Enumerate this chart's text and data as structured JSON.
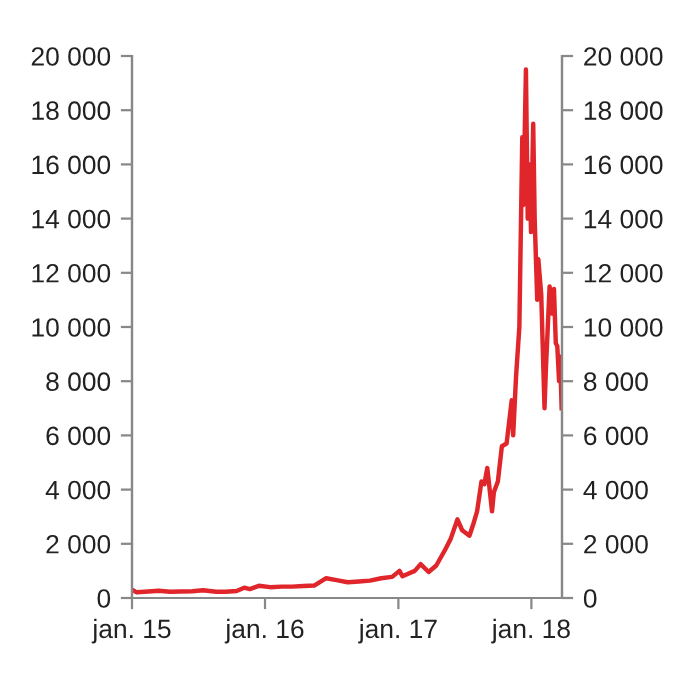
{
  "chart_data": {
    "type": "line",
    "x": [
      "2015-01-01",
      "2015-01-14",
      "2015-02-15",
      "2015-03-15",
      "2015-04-15",
      "2015-05-15",
      "2015-06-15",
      "2015-07-15",
      "2015-08-20",
      "2015-09-15",
      "2015-10-15",
      "2015-11-05",
      "2015-11-20",
      "2015-12-15",
      "2016-01-15",
      "2016-02-15",
      "2016-03-15",
      "2016-04-15",
      "2016-05-15",
      "2016-06-17",
      "2016-07-15",
      "2016-08-15",
      "2016-09-15",
      "2016-10-15",
      "2016-11-15",
      "2016-12-15",
      "2017-01-04",
      "2017-01-12",
      "2017-02-15",
      "2017-03-03",
      "2017-03-25",
      "2017-04-15",
      "2017-05-10",
      "2017-05-25",
      "2017-06-12",
      "2017-06-25",
      "2017-07-15",
      "2017-07-25",
      "2017-08-05",
      "2017-08-17",
      "2017-08-25",
      "2017-09-02",
      "2017-09-15",
      "2017-09-20",
      "2017-10-01",
      "2017-10-12",
      "2017-10-25",
      "2017-11-08",
      "2017-11-12",
      "2017-11-20",
      "2017-11-29",
      "2017-12-07",
      "2017-12-10",
      "2017-12-17",
      "2017-12-22",
      "2017-12-27",
      "2017-12-31",
      "2018-01-06",
      "2018-01-10",
      "2018-01-17",
      "2018-01-20",
      "2018-01-28",
      "2018-02-06",
      "2018-02-10",
      "2018-02-20",
      "2018-02-26",
      "2018-03-04",
      "2018-03-09",
      "2018-03-13",
      "2018-03-18",
      "2018-03-21",
      "2018-03-25"
    ],
    "series": [
      {
        "color": "#e0262b",
        "values": [
          310,
          210,
          240,
          270,
          230,
          240,
          250,
          285,
          230,
          230,
          260,
          380,
          330,
          450,
          400,
          420,
          420,
          440,
          460,
          730,
          660,
          580,
          610,
          640,
          730,
          780,
          1000,
          800,
          1000,
          1250,
          960,
          1200,
          1800,
          2200,
          2900,
          2500,
          2300,
          2700,
          3200,
          4300,
          4200,
          4800,
          3200,
          3900,
          4300,
          5600,
          5700,
          7300,
          6000,
          8200,
          10000,
          17000,
          14500,
          19500,
          14000,
          16000,
          13500,
          17500,
          14000,
          11000,
          12500,
          11200,
          7000,
          8500,
          11500,
          10500,
          11400,
          9400,
          9300,
          8000,
          8900,
          7000
        ]
      }
    ],
    "xlim": [
      "2015-01-01",
      "2018-03-26"
    ],
    "xticks": [
      {
        "value": "2015-01-01",
        "label": "jan. 15"
      },
      {
        "value": "2016-01-01",
        "label": "jan. 16"
      },
      {
        "value": "2017-01-01",
        "label": "jan. 17"
      },
      {
        "value": "2018-01-01",
        "label": "jan. 18"
      }
    ],
    "ylim": [
      0,
      20000
    ],
    "yticks": [
      {
        "value": 0,
        "label": "0"
      },
      {
        "value": 2000,
        "label": "2 000"
      },
      {
        "value": 4000,
        "label": "4 000"
      },
      {
        "value": 6000,
        "label": "6 000"
      },
      {
        "value": 8000,
        "label": "8 000"
      },
      {
        "value": 10000,
        "label": "10 000"
      },
      {
        "value": 12000,
        "label": "12 000"
      },
      {
        "value": 14000,
        "label": "14 000"
      },
      {
        "value": 16000,
        "label": "16 000"
      },
      {
        "value": 18000,
        "label": "18 000"
      },
      {
        "value": 20000,
        "label": "20 000"
      }
    ],
    "y2lim": [
      0,
      20000
    ],
    "y2ticks": [
      {
        "value": 0,
        "label": "0"
      },
      {
        "value": 2000,
        "label": "2 000"
      },
      {
        "value": 4000,
        "label": "4 000"
      },
      {
        "value": 6000,
        "label": "6 000"
      },
      {
        "value": 8000,
        "label": "8 000"
      },
      {
        "value": 10000,
        "label": "10 000"
      },
      {
        "value": 12000,
        "label": "12 000"
      },
      {
        "value": 14000,
        "label": "14 000"
      },
      {
        "value": 16000,
        "label": "16 000"
      },
      {
        "value": 18000,
        "label": "18 000"
      },
      {
        "value": 20000,
        "label": "20 000"
      }
    ],
    "line_style": "solid",
    "grid": false,
    "legend": false
  }
}
